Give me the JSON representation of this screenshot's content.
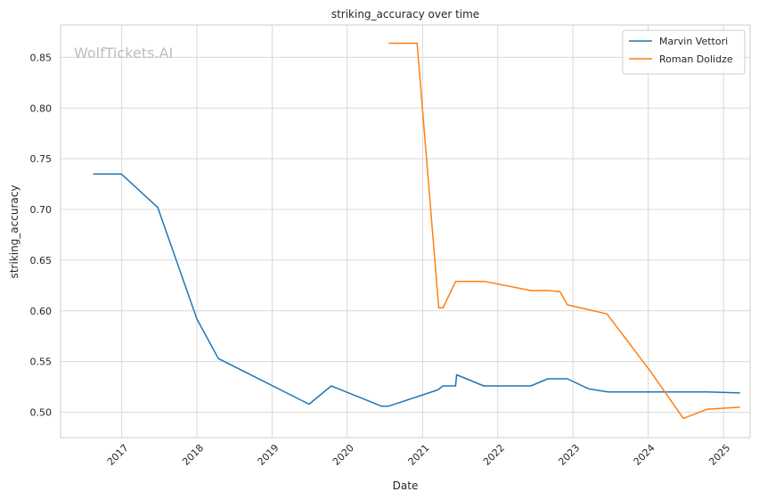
{
  "watermark": "WolfTickets.AI",
  "chart_data": {
    "type": "line",
    "title": "striking_accuracy over time",
    "xlabel": "Date",
    "ylabel": "striking_accuracy",
    "xlim": [
      "2016-03-10",
      "2025-05-10"
    ],
    "ylim": [
      0.475,
      0.882
    ],
    "x_ticks": [
      "2017-01-01",
      "2018-01-01",
      "2019-01-01",
      "2020-01-01",
      "2021-01-01",
      "2022-01-01",
      "2023-01-01",
      "2024-01-01",
      "2025-01-01"
    ],
    "x_tick_labels": [
      "2017",
      "2018",
      "2019",
      "2020",
      "2021",
      "2022",
      "2023",
      "2024",
      "2025"
    ],
    "y_ticks": [
      0.5,
      0.55,
      0.6,
      0.65,
      0.7,
      0.75,
      0.8,
      0.85
    ],
    "y_tick_labels": [
      "0.50",
      "0.55",
      "0.60",
      "0.65",
      "0.70",
      "0.75",
      "0.80",
      "0.85"
    ],
    "grid": true,
    "legend_position": "top-right",
    "series": [
      {
        "name": "Marvin Vettori",
        "color": "#1f77b4",
        "points": [
          [
            "2016-08-15",
            0.735
          ],
          [
            "2016-12-30",
            0.735
          ],
          [
            "2017-06-25",
            0.702
          ],
          [
            "2018-01-01",
            0.592
          ],
          [
            "2018-04-15",
            0.553
          ],
          [
            "2019-06-30",
            0.508
          ],
          [
            "2019-10-15",
            0.526
          ],
          [
            "2020-06-15",
            0.506
          ],
          [
            "2020-07-20",
            0.506
          ],
          [
            "2021-03-15",
            0.522
          ],
          [
            "2021-04-10",
            0.526
          ],
          [
            "2021-06-10",
            0.526
          ],
          [
            "2021-06-15",
            0.537
          ],
          [
            "2021-10-25",
            0.526
          ],
          [
            "2022-06-10",
            0.526
          ],
          [
            "2022-09-01",
            0.533
          ],
          [
            "2022-12-05",
            0.533
          ],
          [
            "2023-03-20",
            0.523
          ],
          [
            "2023-06-20",
            0.52
          ],
          [
            "2024-10-15",
            0.52
          ],
          [
            "2025-03-22",
            0.519
          ]
        ]
      },
      {
        "name": "Roman Dolidze",
        "color": "#ff7f0e",
        "points": [
          [
            "2020-07-20",
            0.864
          ],
          [
            "2020-12-05",
            0.864
          ],
          [
            "2021-03-20",
            0.603
          ],
          [
            "2021-04-10",
            0.603
          ],
          [
            "2021-06-10",
            0.629
          ],
          [
            "2021-10-30",
            0.629
          ],
          [
            "2022-06-10",
            0.62
          ],
          [
            "2022-09-01",
            0.62
          ],
          [
            "2022-10-30",
            0.619
          ],
          [
            "2022-12-05",
            0.606
          ],
          [
            "2023-06-15",
            0.597
          ],
          [
            "2024-01-10",
            0.541
          ],
          [
            "2024-06-20",
            0.494
          ],
          [
            "2024-10-15",
            0.503
          ],
          [
            "2025-03-22",
            0.505
          ]
        ]
      }
    ]
  }
}
